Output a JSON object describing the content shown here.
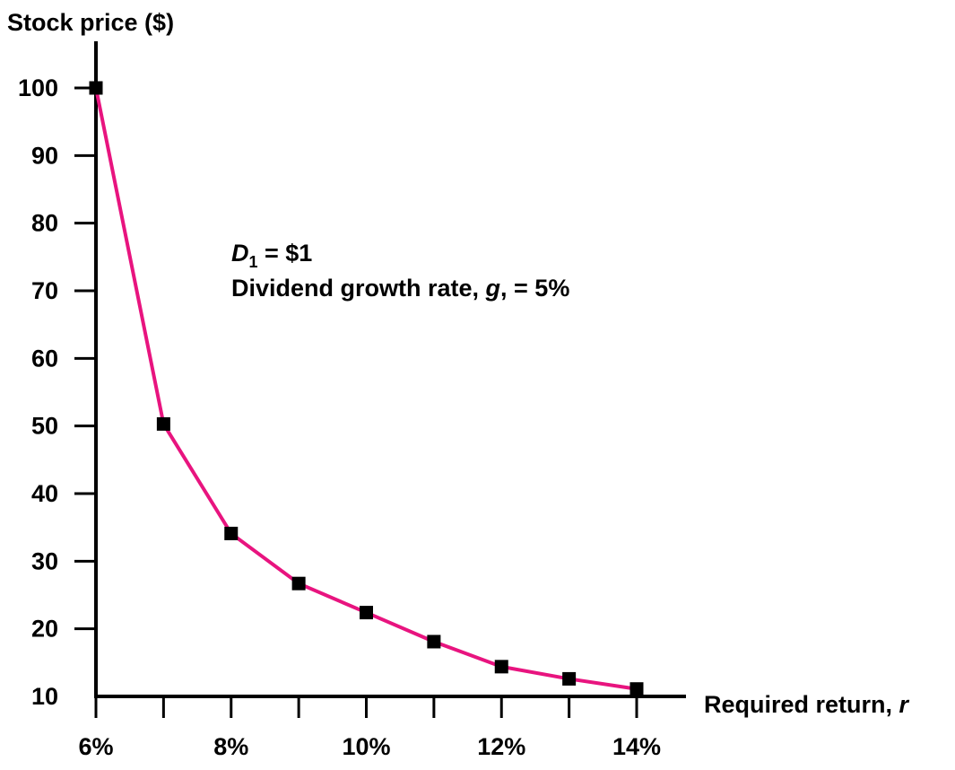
{
  "chart_data": {
    "type": "line",
    "title": "",
    "ylabel": "Stock price ($)",
    "xlabel_text": "Required return, ",
    "xlabel_var": "r",
    "x": [
      6,
      7,
      8,
      9,
      10,
      11,
      12,
      13,
      14
    ],
    "x_tick_labels": [
      {
        "x": 6,
        "label": "6%"
      },
      {
        "x": 8,
        "label": "8%"
      },
      {
        "x": 10,
        "label": "10%"
      },
      {
        "x": 12,
        "label": "12%"
      },
      {
        "x": 14,
        "label": "14%"
      }
    ],
    "y_ticks": [
      10,
      20,
      30,
      40,
      50,
      60,
      70,
      80,
      90,
      100
    ],
    "xlim": [
      6,
      14
    ],
    "ylim": [
      10,
      100
    ],
    "series": [
      {
        "values": [
          100,
          50.3,
          34.1,
          26.7,
          22.4,
          18.1,
          14.4,
          12.6,
          11.1
        ]
      }
    ],
    "annotation": {
      "line1_var": "D",
      "line1_sub": "1",
      "line1_rest": " = $1",
      "line2_pre": "Dividend growth rate, ",
      "line2_var": "g",
      "line2_post": ", = 5%"
    },
    "colors": {
      "line": "#E8147F",
      "marker": "#000000",
      "axis": "#000000"
    },
    "grid": false,
    "legend": "none"
  }
}
